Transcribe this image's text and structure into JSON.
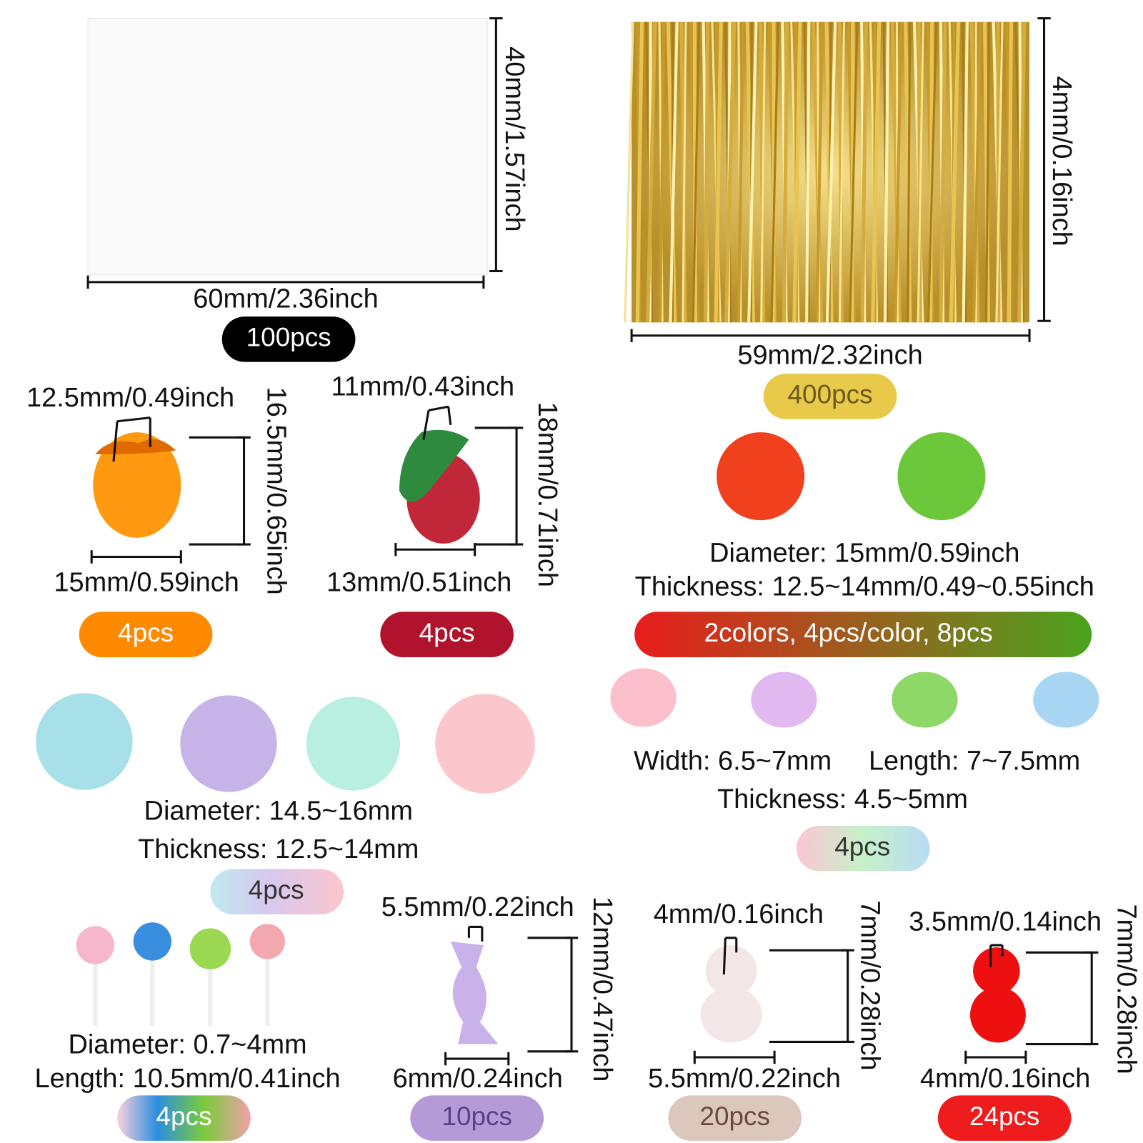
{
  "bag": {
    "width": "60mm/2.36inch",
    "height": "40mm/1.57inch",
    "count": "100pcs"
  },
  "twist_ties": {
    "width": "59mm/2.32inch",
    "height": "4mm/0.16inch",
    "count": "400pcs"
  },
  "raspberry": {
    "top": "12.5mm/0.49inch",
    "height": "16.5mm/0.65inch",
    "width": "15mm/0.59inch",
    "count": "4pcs"
  },
  "grape": {
    "top": "11mm/0.43inch",
    "height": "18mm/0.71inch",
    "width": "13mm/0.51inch",
    "count": "4pcs"
  },
  "oranges": {
    "diameter": "Diameter: 15mm/0.59inch",
    "thickness": "Thickness: 12.5~14mm/0.49~0.55inch",
    "count": "2colors, 4pcs/color, 8pcs"
  },
  "ice_cream": {
    "diameter": "Diameter: 14.5~16mm",
    "thickness": "Thickness: 12.5~14mm",
    "count": "4pcs"
  },
  "macarons": {
    "width": "Width: 6.5~7mm",
    "length": "Length: 7~7.5mm",
    "thickness": "Thickness: 4.5~5mm",
    "count": "4pcs"
  },
  "lollipops": {
    "diameter": "Diameter: 0.7~4mm",
    "length": "Length: 10.5mm/0.41inch",
    "count": "4pcs"
  },
  "candy": {
    "top": "5.5mm/0.22inch",
    "height": "12mm/0.47inch",
    "width": "6mm/0.24inch",
    "count": "10pcs"
  },
  "bear_white": {
    "top": "4mm/0.16inch",
    "height": "7mm/0.28inch",
    "width": "5.5mm/0.22inch",
    "count": "20pcs"
  },
  "bear_red": {
    "top": "3.5mm/0.14inch",
    "height": "7mm/0.28inch",
    "width": "4mm/0.16inch",
    "count": "24pcs"
  }
}
